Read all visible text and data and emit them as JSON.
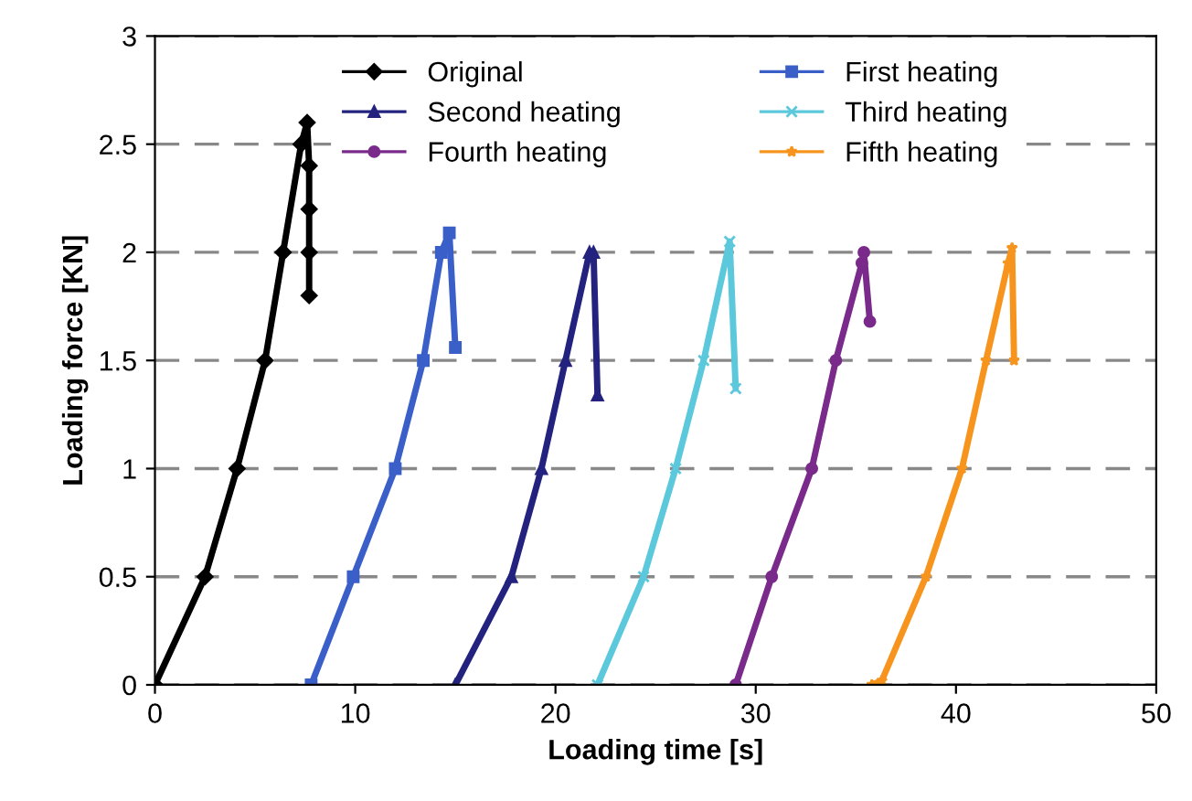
{
  "chart_data": {
    "type": "line",
    "xlabel": "Loading time [s]",
    "ylabel": "Loading force [KN]",
    "xlim": [
      0,
      50
    ],
    "ylim": [
      0,
      3
    ],
    "xticks": [
      0,
      10,
      20,
      30,
      40,
      50
    ],
    "yticks": [
      0,
      0.5,
      1,
      1.5,
      2,
      2.5,
      3
    ],
    "grid": "y",
    "legend": "top",
    "line_style": "solid",
    "series": [
      {
        "name": "Original",
        "color": "#000000",
        "marker": "diamond",
        "x": [
          0,
          2.5,
          4.1,
          5.5,
          6.4,
          7.3,
          7.6,
          7.7,
          7.7,
          7.7,
          7.7
        ],
        "values": [
          0,
          0.5,
          1,
          1.5,
          2,
          2.5,
          2.6,
          2.4,
          2.2,
          2.0,
          1.8
        ]
      },
      {
        "name": "First heating",
        "color": "#3a5fc8",
        "marker": "square",
        "x": [
          7.8,
          9.9,
          12.0,
          13.4,
          14.3,
          14.7,
          15.0
        ],
        "values": [
          0,
          0.5,
          1,
          1.5,
          2,
          2.09,
          1.56
        ]
      },
      {
        "name": "Second heating",
        "color": "#23237f",
        "marker": "triangle",
        "x": [
          15.0,
          17.8,
          19.3,
          20.5,
          21.7,
          21.9,
          22.1
        ],
        "values": [
          0,
          0.5,
          1,
          1.5,
          2,
          2.0,
          1.34
        ]
      },
      {
        "name": "Third heating",
        "color": "#5bc8dc",
        "marker": "cross",
        "x": [
          22.1,
          24.4,
          26.0,
          27.4,
          28.7,
          29.0
        ],
        "values": [
          0,
          0.5,
          1,
          1.5,
          2.05,
          1.37
        ]
      },
      {
        "name": "Fourth heating",
        "color": "#7a2a8a",
        "marker": "circle",
        "x": [
          29.0,
          30.8,
          32.8,
          34.0,
          35.3,
          35.4,
          35.7
        ],
        "values": [
          0,
          0.5,
          1,
          1.5,
          1.95,
          2.0,
          1.68
        ]
      },
      {
        "name": "Fifth heating",
        "color": "#f7941d",
        "marker": "star",
        "x": [
          35.8,
          36.3,
          38.5,
          40.3,
          41.5,
          42.6,
          42.8,
          42.9
        ],
        "values": [
          0,
          0.02,
          0.5,
          1,
          1.5,
          1.95,
          2.02,
          1.5
        ]
      }
    ]
  }
}
